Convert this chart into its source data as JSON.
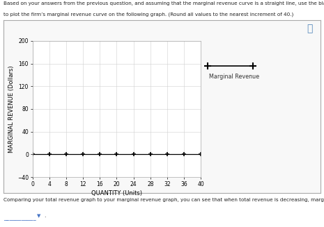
{
  "header_line1": "Based on your answers from the previous question, and assuming that the marginal revenue curve is a straight line, use the black line (plus symbol)",
  "header_line2": "to plot the firm’s marginal revenue curve on the following graph. (Round all values to the nearest increment of 40.)",
  "xlabel": "QUANTITY (Units)",
  "ylabel": "MARGINAL REVENUE (Dollars)",
  "xlim": [
    0,
    40
  ],
  "ylim": [
    -40,
    200
  ],
  "yticks": [
    -40,
    0,
    40,
    80,
    120,
    160,
    200
  ],
  "xticks": [
    0,
    4,
    8,
    12,
    16,
    20,
    24,
    28,
    32,
    36,
    40
  ],
  "mr_x": [
    0,
    4,
    8,
    12,
    16,
    20,
    24,
    28,
    32,
    36,
    40
  ],
  "mr_y": [
    0,
    0,
    0,
    0,
    0,
    0,
    0,
    0,
    0,
    0,
    0
  ],
  "line_color": "black",
  "legend_label": "Marginal Revenue",
  "footer_line1": "Comparing your total revenue graph to your marginal revenue graph, you can see that when total revenue is decreasing, marginal revenue is",
  "background_color": "#ffffff",
  "plot_bg_color": "#ffffff",
  "grid_color": "#d0d0d0",
  "outer_box_color": "#cccccc"
}
